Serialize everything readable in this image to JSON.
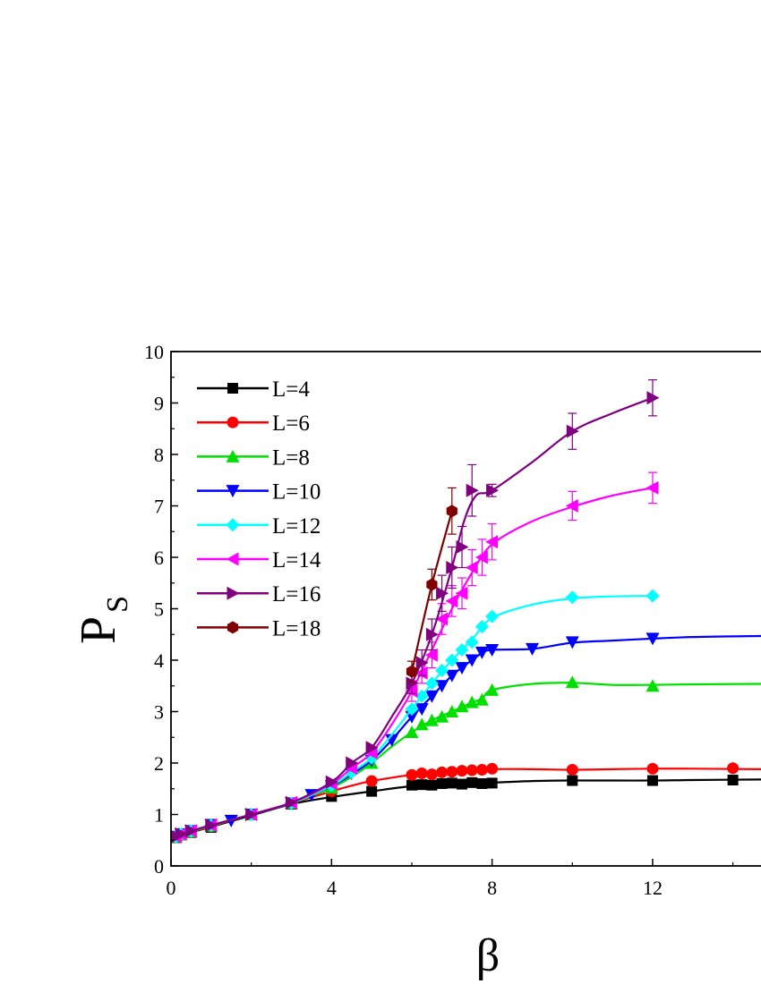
{
  "chart_data": {
    "type": "line",
    "xlabel": "β",
    "ylabel": "P",
    "ylabel_subscript": "S",
    "xlim": [
      0,
      14.7
    ],
    "ylim": [
      0,
      10
    ],
    "x_ticks": [
      0,
      4,
      8,
      12
    ],
    "y_ticks": [
      0,
      1,
      2,
      3,
      4,
      5,
      6,
      7,
      8,
      9,
      10
    ],
    "grid": false,
    "legend_position": "top-left",
    "series": [
      {
        "name": "L=4",
        "color": "#000000",
        "marker": "square",
        "x": [
          0.125,
          0.25,
          0.5,
          1,
          2,
          3,
          4,
          5,
          6,
          6.25,
          6.5,
          6.75,
          7,
          7.25,
          7.5,
          7.75,
          8,
          10,
          12,
          14
        ],
        "y": [
          0.55,
          0.6,
          0.65,
          0.75,
          1.0,
          1.2,
          1.35,
          1.45,
          1.57,
          1.58,
          1.57,
          1.6,
          1.61,
          1.59,
          1.62,
          1.6,
          1.61,
          1.66,
          1.66,
          1.67
        ],
        "curve_x": [
          -0.05,
          0.5,
          1,
          2,
          3,
          4,
          5,
          6,
          7,
          8,
          9,
          10,
          11,
          12,
          13,
          14.7
        ],
        "curve_y": [
          0.52,
          0.65,
          0.76,
          0.98,
          1.2,
          1.34,
          1.45,
          1.55,
          1.59,
          1.62,
          1.65,
          1.66,
          1.66,
          1.66,
          1.67,
          1.68
        ]
      },
      {
        "name": "L=6",
        "color": "#ff0000",
        "marker": "circle",
        "x": [
          0.125,
          0.25,
          0.5,
          1,
          2,
          3,
          4,
          5,
          6,
          6.25,
          6.5,
          6.75,
          7,
          7.25,
          7.5,
          7.75,
          8,
          10,
          12,
          14
        ],
        "y": [
          0.56,
          0.6,
          0.66,
          0.77,
          1.0,
          1.22,
          1.45,
          1.65,
          1.77,
          1.8,
          1.78,
          1.82,
          1.83,
          1.85,
          1.86,
          1.87,
          1.89,
          1.87,
          1.89,
          1.9
        ],
        "curve_x": [
          0,
          0.5,
          1,
          2,
          3,
          4,
          4.5,
          5,
          6,
          7,
          8,
          9,
          10,
          11,
          12,
          13,
          14.7
        ],
        "curve_y": [
          0.55,
          0.66,
          0.77,
          1.0,
          1.22,
          1.45,
          1.56,
          1.65,
          1.77,
          1.83,
          1.88,
          1.88,
          1.87,
          1.88,
          1.89,
          1.89,
          1.88
        ]
      },
      {
        "name": "L=8",
        "color": "#00e000",
        "marker": "triangle-up",
        "x": [
          0.125,
          0.25,
          0.5,
          1,
          2,
          3,
          4,
          5,
          6,
          6.25,
          6.5,
          6.75,
          7,
          7.25,
          7.5,
          7.75,
          8,
          10,
          12
        ],
        "y": [
          0.57,
          0.61,
          0.67,
          0.78,
          1.0,
          1.22,
          1.52,
          2.0,
          2.6,
          2.75,
          2.83,
          2.9,
          3.0,
          3.1,
          3.18,
          3.23,
          3.42,
          3.57,
          3.5
        ],
        "curve_x": [
          0,
          0.5,
          1,
          2,
          3,
          4,
          4.5,
          5,
          5.5,
          6,
          6.5,
          7,
          7.5,
          7.75,
          8,
          9,
          10,
          11,
          12,
          13,
          14.7
        ],
        "curve_y": [
          0.55,
          0.67,
          0.78,
          1.0,
          1.22,
          1.52,
          1.73,
          2.0,
          2.32,
          2.6,
          2.83,
          3.0,
          3.18,
          3.25,
          3.42,
          3.54,
          3.56,
          3.52,
          3.52,
          3.53,
          3.54
        ]
      },
      {
        "name": "L=10",
        "color": "#0000ff",
        "marker": "triangle-down",
        "x": [
          0.125,
          0.25,
          0.5,
          1,
          1.5,
          2,
          3,
          3.5,
          4,
          4.5,
          5,
          5.5,
          6,
          6.25,
          6.5,
          6.75,
          7,
          7.25,
          7.5,
          7.75,
          8,
          9,
          10,
          12
        ],
        "y": [
          0.57,
          0.62,
          0.68,
          0.8,
          0.88,
          1.0,
          1.22,
          1.38,
          1.55,
          1.8,
          2.05,
          2.45,
          2.9,
          3.05,
          3.3,
          3.5,
          3.7,
          3.85,
          4.0,
          4.15,
          4.2,
          4.22,
          4.35,
          4.42
        ],
        "curve_x": [
          0,
          0.5,
          1,
          2,
          3,
          4,
          4.5,
          5,
          5.5,
          6,
          6.5,
          7,
          7.5,
          7.75,
          8,
          9,
          10,
          11,
          12,
          13,
          14.7
        ],
        "curve_y": [
          0.55,
          0.68,
          0.79,
          1.0,
          1.22,
          1.55,
          1.78,
          2.05,
          2.45,
          2.9,
          3.3,
          3.7,
          4.0,
          4.14,
          4.2,
          4.22,
          4.34,
          4.38,
          4.42,
          4.45,
          4.47
        ]
      },
      {
        "name": "L=12",
        "color": "#00ffff",
        "marker": "diamond",
        "x": [
          0.125,
          0.25,
          0.5,
          1,
          2,
          3,
          4,
          4.5,
          5,
          6,
          6.25,
          6.5,
          6.75,
          7,
          7.25,
          7.5,
          7.75,
          8,
          10,
          12
        ],
        "y": [
          0.57,
          0.62,
          0.68,
          0.79,
          1.0,
          1.22,
          1.56,
          1.82,
          2.1,
          3.05,
          3.3,
          3.55,
          3.8,
          4.0,
          4.2,
          4.35,
          4.65,
          4.85,
          5.22,
          5.25
        ],
        "curve_x": [
          0,
          0.5,
          1,
          2,
          3,
          4,
          4.5,
          5,
          5.5,
          6,
          6.5,
          7,
          7.5,
          8,
          9,
          10,
          11,
          12
        ],
        "curve_y": [
          0.55,
          0.68,
          0.79,
          1.0,
          1.22,
          1.56,
          1.82,
          2.1,
          2.55,
          3.05,
          3.55,
          4.0,
          4.4,
          4.82,
          5.08,
          5.2,
          5.24,
          5.25
        ]
      },
      {
        "name": "L=14",
        "color": "#ff00ff",
        "marker": "triangle-left",
        "x": [
          0.125,
          0.25,
          0.5,
          1,
          2,
          3,
          4,
          4.5,
          5,
          6,
          6.25,
          6.5,
          6.75,
          7,
          7.25,
          7.5,
          7.75,
          8,
          10,
          12
        ],
        "y": [
          0.57,
          0.62,
          0.68,
          0.79,
          1.0,
          1.23,
          1.6,
          1.9,
          2.2,
          3.4,
          3.75,
          4.1,
          4.8,
          5.15,
          5.3,
          5.8,
          6.0,
          6.3,
          7.0,
          7.35
        ],
        "error": [
          0,
          0,
          0,
          0,
          0,
          0,
          0,
          0,
          0,
          0.2,
          0.2,
          0.25,
          0.3,
          0.3,
          0.3,
          0.35,
          0.35,
          0.35,
          0.28,
          0.3
        ],
        "curve_x": [
          0,
          0.5,
          1,
          2,
          3,
          4,
          4.5,
          5,
          5.5,
          6,
          6.5,
          7,
          7.5,
          8,
          9,
          10,
          11,
          12
        ],
        "curve_y": [
          0.55,
          0.68,
          0.79,
          1.0,
          1.23,
          1.6,
          1.9,
          2.2,
          2.75,
          3.4,
          4.2,
          5.0,
          5.7,
          6.25,
          6.7,
          6.98,
          7.2,
          7.35
        ]
      },
      {
        "name": "L=16",
        "color": "#800080",
        "marker": "triangle-right",
        "x": [
          0.125,
          0.25,
          0.5,
          1,
          2,
          3,
          4,
          4.5,
          5,
          6,
          6.25,
          6.5,
          6.75,
          7,
          7.25,
          7.5,
          8,
          10,
          12
        ],
        "y": [
          0.57,
          0.62,
          0.68,
          0.79,
          1.0,
          1.23,
          1.63,
          2.0,
          2.3,
          3.55,
          3.95,
          4.5,
          5.3,
          5.8,
          6.2,
          7.3,
          7.3,
          8.45,
          9.1
        ],
        "error": [
          0,
          0,
          0,
          0,
          0,
          0,
          0,
          0,
          0,
          0.2,
          0.25,
          0.3,
          0.35,
          0.4,
          0.4,
          0.5,
          0.12,
          0.35,
          0.35
        ],
        "curve_x": [
          0,
          0.5,
          1,
          2,
          3,
          4,
          4.5,
          5,
          5.5,
          6,
          6.5,
          7,
          7.3,
          7.6,
          8,
          9,
          10,
          11,
          12
        ],
        "curve_y": [
          0.55,
          0.68,
          0.79,
          1.0,
          1.23,
          1.63,
          2.0,
          2.3,
          2.9,
          3.55,
          4.5,
          5.8,
          6.7,
          7.2,
          7.3,
          7.85,
          8.45,
          8.8,
          9.1
        ]
      },
      {
        "name": "L=18",
        "color": "#800000",
        "marker": "hexagon",
        "x": [
          6,
          6.5,
          7
        ],
        "y": [
          3.78,
          5.47,
          6.9
        ],
        "error": [
          0.2,
          0.3,
          0.45
        ],
        "curve_x": [
          6,
          6.5,
          7
        ],
        "curve_y": [
          3.78,
          5.47,
          6.9
        ]
      }
    ]
  }
}
